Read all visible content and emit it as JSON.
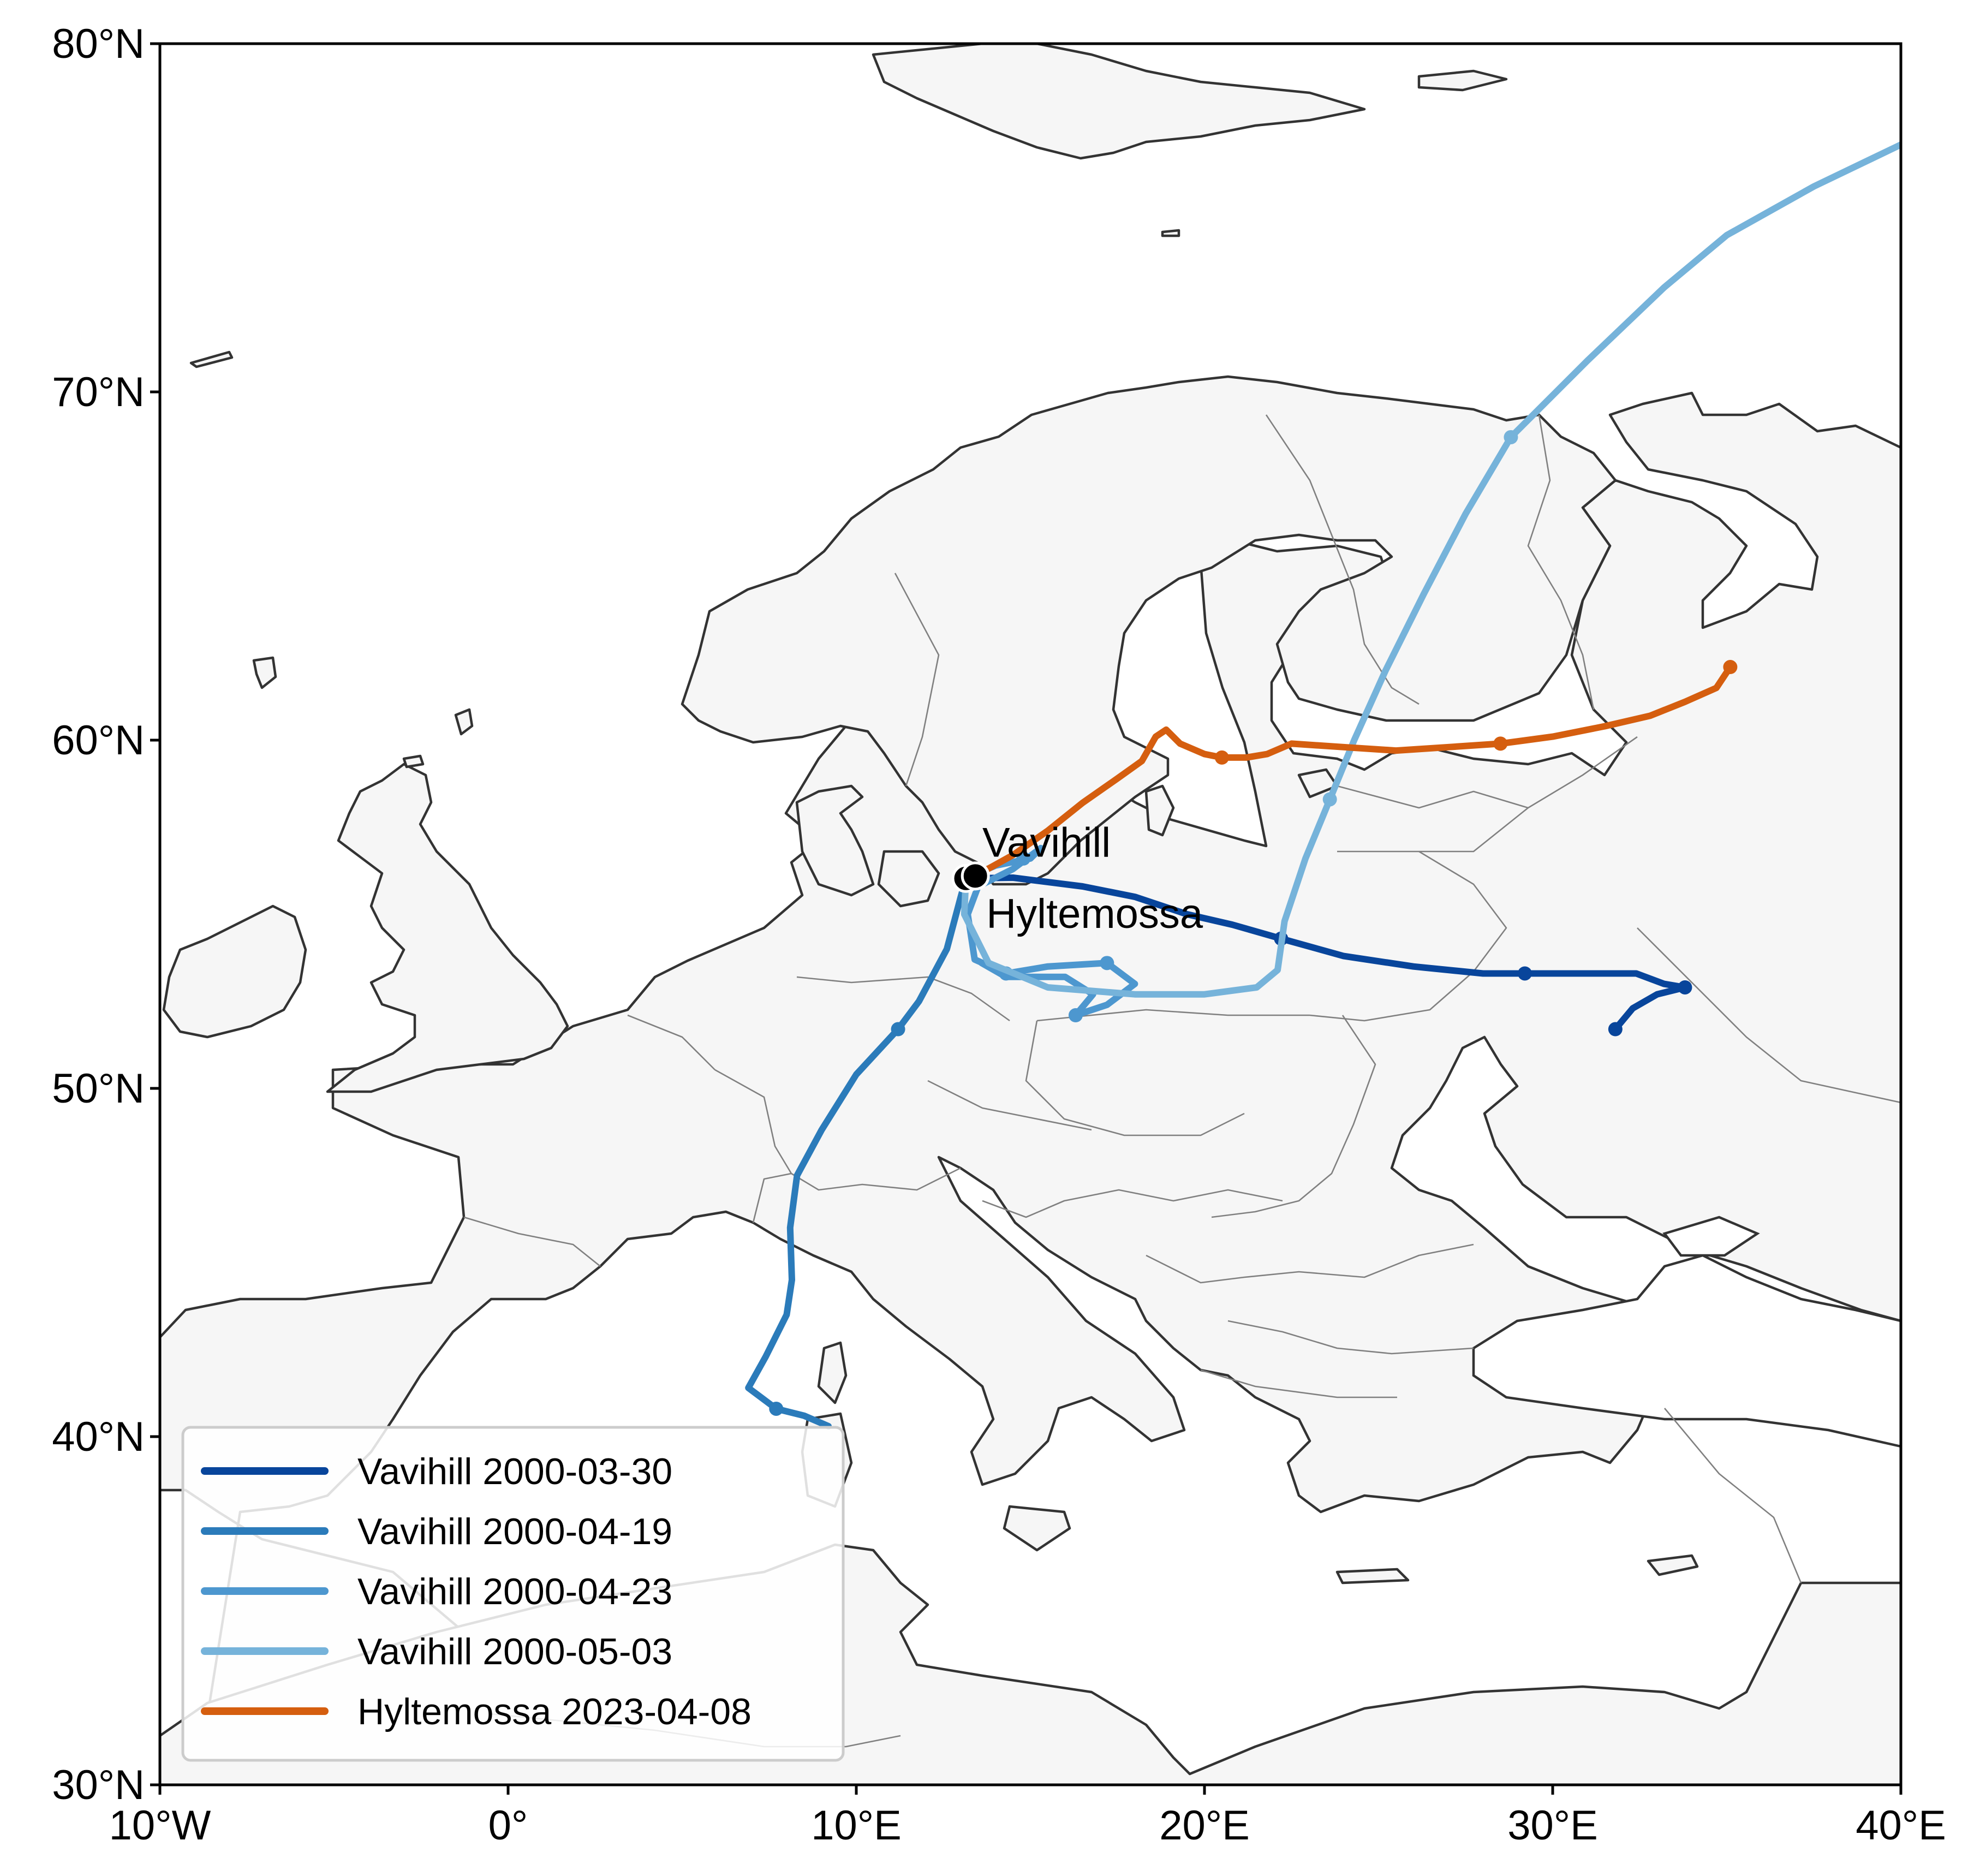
{
  "chart_data": {
    "type": "map-trajectories",
    "projection": "PlateCarree",
    "xlim": [
      -10,
      40
    ],
    "ylim": [
      30,
      80
    ],
    "x_ticks": [
      {
        "value": -10,
        "label": "10°W"
      },
      {
        "value": 0,
        "label": "0°"
      },
      {
        "value": 10,
        "label": "10°E"
      },
      {
        "value": 20,
        "label": "20°E"
      },
      {
        "value": 30,
        "label": "30°E"
      },
      {
        "value": 40,
        "label": "40°E"
      }
    ],
    "y_ticks": [
      {
        "value": 30,
        "label": "30°N"
      },
      {
        "value": 40,
        "label": "40°N"
      },
      {
        "value": 50,
        "label": "50°N"
      },
      {
        "value": 60,
        "label": "60°N"
      },
      {
        "value": 70,
        "label": "70°N"
      },
      {
        "value": 80,
        "label": "80°N"
      }
    ],
    "land_color": "#f6f6f6",
    "coast_color": "#333333",
    "border_color": "#808080",
    "legend_position": "lower-left",
    "sites": [
      {
        "name": "Vavihill",
        "lon": 13.15,
        "lat": 56.03
      },
      {
        "name": "Hyltemossa",
        "lon": 13.42,
        "lat": 56.1
      }
    ],
    "series": [
      {
        "name": "Vavihill 2000-03-30",
        "color": "#08459b",
        "points": [
          [
            13.15,
            56.03
          ],
          [
            14.5,
            56.05
          ],
          [
            16.5,
            55.8
          ],
          [
            18.0,
            55.5
          ],
          [
            19.5,
            55.0
          ],
          [
            20.8,
            54.7
          ],
          [
            22.2,
            54.3
          ],
          [
            24.0,
            53.8
          ],
          [
            26.0,
            53.5
          ],
          [
            28.0,
            53.3
          ],
          [
            29.2,
            53.3
          ],
          [
            31.0,
            53.3
          ],
          [
            32.4,
            53.3
          ],
          [
            33.2,
            53.0
          ],
          [
            33.8,
            52.9
          ],
          [
            33.0,
            52.7
          ],
          [
            32.3,
            52.3
          ],
          [
            31.8,
            51.7
          ]
        ],
        "markers": [
          [
            22.2,
            54.3
          ],
          [
            29.2,
            53.3
          ],
          [
            33.8,
            52.9
          ],
          [
            31.8,
            51.7
          ]
        ]
      },
      {
        "name": "Vavihill 2000-04-19",
        "color": "#2b7bba",
        "points": [
          [
            13.15,
            56.03
          ],
          [
            13.0,
            55.5
          ],
          [
            12.6,
            54.0
          ],
          [
            11.8,
            52.5
          ],
          [
            11.2,
            51.7
          ],
          [
            10.0,
            50.4
          ],
          [
            9.0,
            48.8
          ],
          [
            8.3,
            47.5
          ],
          [
            8.1,
            46.0
          ],
          [
            8.15,
            44.5
          ],
          [
            8.0,
            43.5
          ],
          [
            7.4,
            42.3
          ],
          [
            6.9,
            41.4
          ],
          [
            7.7,
            40.8
          ],
          [
            8.5,
            40.6
          ],
          [
            9.2,
            40.3
          ]
        ],
        "markers": [
          [
            11.2,
            51.7
          ],
          [
            7.7,
            40.8
          ]
        ]
      },
      {
        "name": "Vavihill 2000-04-23",
        "color": "#4d97cf",
        "points": [
          [
            13.15,
            56.03
          ],
          [
            14.0,
            56.4
          ],
          [
            15.0,
            56.6
          ],
          [
            15.3,
            56.9
          ],
          [
            14.5,
            56.3
          ],
          [
            13.5,
            55.8
          ],
          [
            13.2,
            55.0
          ],
          [
            13.4,
            53.7
          ],
          [
            14.3,
            53.3
          ],
          [
            15.5,
            53.5
          ],
          [
            17.2,
            53.6
          ],
          [
            18.0,
            53.0
          ],
          [
            17.2,
            52.4
          ],
          [
            16.3,
            52.1
          ],
          [
            16.8,
            52.7
          ],
          [
            16.0,
            53.2
          ],
          [
            14.3,
            53.2
          ],
          [
            13.6,
            53.6
          ]
        ],
        "markers": [
          [
            14.8,
            56.6
          ],
          [
            14.3,
            53.3
          ],
          [
            17.2,
            53.6
          ],
          [
            16.3,
            52.1
          ]
        ]
      },
      {
        "name": "Vavihill 2000-05-03",
        "color": "#76b3da",
        "points": [
          [
            13.15,
            56.03
          ],
          [
            13.1,
            55.0
          ],
          [
            13.8,
            53.6
          ],
          [
            15.5,
            52.9
          ],
          [
            18.0,
            52.7
          ],
          [
            20.0,
            52.7
          ],
          [
            21.5,
            52.9
          ],
          [
            22.1,
            53.4
          ],
          [
            22.3,
            54.8
          ],
          [
            22.9,
            56.6
          ],
          [
            23.6,
            58.3
          ],
          [
            24.3,
            60.0
          ],
          [
            25.2,
            62.0
          ],
          [
            26.3,
            64.2
          ],
          [
            27.5,
            66.5
          ],
          [
            28.8,
            68.7
          ],
          [
            31.0,
            70.9
          ],
          [
            33.2,
            73.0
          ],
          [
            35.0,
            74.5
          ],
          [
            37.5,
            75.9
          ],
          [
            40.0,
            77.1
          ]
        ],
        "markers": [
          [
            23.6,
            58.3
          ],
          [
            28.8,
            68.7
          ]
        ]
      },
      {
        "name": "Hyltemossa 2023-04-08",
        "color": "#d55e0f",
        "points": [
          [
            13.42,
            56.1
          ],
          [
            14.5,
            56.7
          ],
          [
            15.5,
            57.4
          ],
          [
            16.5,
            58.2
          ],
          [
            17.5,
            58.9
          ],
          [
            18.2,
            59.4
          ],
          [
            18.6,
            60.1
          ],
          [
            18.9,
            60.3
          ],
          [
            19.3,
            59.9
          ],
          [
            20.0,
            59.6
          ],
          [
            20.5,
            59.5
          ],
          [
            21.2,
            59.5
          ],
          [
            21.8,
            59.6
          ],
          [
            22.5,
            59.9
          ],
          [
            24.0,
            59.8
          ],
          [
            25.5,
            59.7
          ],
          [
            27.0,
            59.8
          ],
          [
            28.5,
            59.9
          ],
          [
            30.0,
            60.1
          ],
          [
            31.5,
            60.4
          ],
          [
            32.8,
            60.7
          ],
          [
            33.8,
            61.1
          ],
          [
            34.7,
            61.5
          ],
          [
            35.1,
            62.1
          ]
        ],
        "markers": [
          [
            20.5,
            59.5
          ],
          [
            28.5,
            59.9
          ],
          [
            35.1,
            62.1
          ]
        ]
      }
    ]
  }
}
